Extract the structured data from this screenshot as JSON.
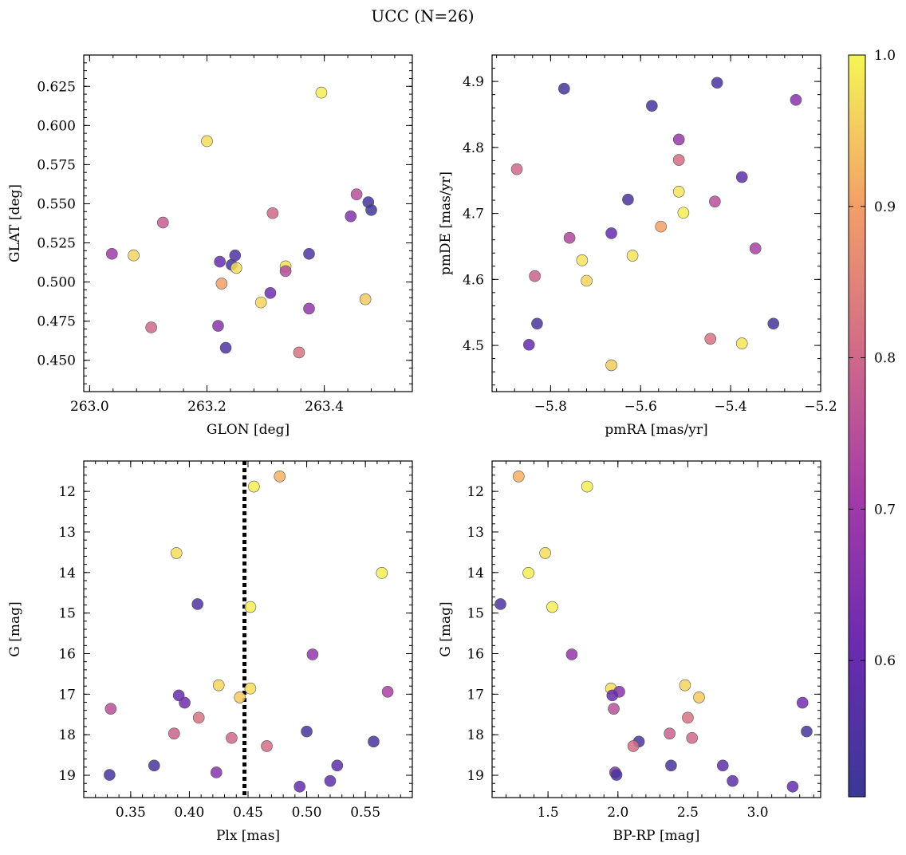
{
  "figure": {
    "title": "UCC (N=26)"
  },
  "colorbar": {
    "range": [
      0.51,
      1.0
    ],
    "ticks": [
      "0.6",
      "0.7",
      "0.8",
      "0.9",
      "1.0"
    ],
    "tick_values": [
      0.6,
      0.7,
      0.8,
      0.9,
      1.0
    ],
    "colormap": "plasma"
  },
  "chart_data": [
    {
      "type": "scatter",
      "xlabel": "GLON [deg]",
      "ylabel": "GLAT [deg]",
      "xlim": [
        262.99,
        263.55
      ],
      "ylim": [
        0.43,
        0.645
      ],
      "y_inverted": false,
      "xticks": [
        263.0,
        263.2,
        263.4
      ],
      "xtick_labels": [
        "263.0",
        "263.2",
        "263.4"
      ],
      "yticks": [
        0.45,
        0.475,
        0.5,
        0.525,
        0.55,
        0.575,
        0.6,
        0.625
      ],
      "ytick_labels": [
        "0.450",
        "0.475",
        "0.500",
        "0.525",
        "0.550",
        "0.575",
        "0.600",
        "0.625"
      ],
      "points": [
        {
          "x": 263.395,
          "y": 0.621,
          "c": 0.99
        },
        {
          "x": 263.2,
          "y": 0.59,
          "c": 0.97
        },
        {
          "x": 263.455,
          "y": 0.556,
          "c": 0.75
        },
        {
          "x": 263.475,
          "y": 0.551,
          "c": 0.53
        },
        {
          "x": 263.48,
          "y": 0.546,
          "c": 0.52
        },
        {
          "x": 263.312,
          "y": 0.544,
          "c": 0.8
        },
        {
          "x": 263.445,
          "y": 0.542,
          "c": 0.65
        },
        {
          "x": 263.125,
          "y": 0.538,
          "c": 0.78
        },
        {
          "x": 263.038,
          "y": 0.518,
          "c": 0.7
        },
        {
          "x": 263.075,
          "y": 0.517,
          "c": 0.96
        },
        {
          "x": 263.374,
          "y": 0.518,
          "c": 0.55
        },
        {
          "x": 263.248,
          "y": 0.517,
          "c": 0.55
        },
        {
          "x": 263.222,
          "y": 0.513,
          "c": 0.6
        },
        {
          "x": 263.242,
          "y": 0.511,
          "c": 0.53
        },
        {
          "x": 263.334,
          "y": 0.51,
          "c": 0.98
        },
        {
          "x": 263.25,
          "y": 0.509,
          "c": 0.97
        },
        {
          "x": 263.334,
          "y": 0.507,
          "c": 0.74
        },
        {
          "x": 263.225,
          "y": 0.499,
          "c": 0.9
        },
        {
          "x": 263.308,
          "y": 0.493,
          "c": 0.62
        },
        {
          "x": 263.47,
          "y": 0.489,
          "c": 0.95
        },
        {
          "x": 263.292,
          "y": 0.487,
          "c": 0.96
        },
        {
          "x": 263.374,
          "y": 0.483,
          "c": 0.68
        },
        {
          "x": 263.219,
          "y": 0.472,
          "c": 0.66
        },
        {
          "x": 263.105,
          "y": 0.471,
          "c": 0.8
        },
        {
          "x": 263.232,
          "y": 0.458,
          "c": 0.55
        },
        {
          "x": 263.357,
          "y": 0.455,
          "c": 0.82
        }
      ]
    },
    {
      "type": "scatter",
      "xlabel": "pmRA [mas/yr]",
      "ylabel": "pmDE [mas/yr]",
      "xlim": [
        -5.93,
        -5.2
      ],
      "ylim": [
        4.43,
        4.94
      ],
      "y_inverted": false,
      "xticks": [
        -5.8,
        -5.6,
        -5.4,
        -5.2
      ],
      "xtick_labels": [
        "−5.8",
        "−5.6",
        "−5.4",
        "−5.2"
      ],
      "yticks": [
        4.5,
        4.6,
        4.7,
        4.8,
        4.9
      ],
      "ytick_labels": [
        "4.5",
        "4.6",
        "4.7",
        "4.8",
        "4.9"
      ],
      "points": [
        {
          "x": -5.43,
          "y": 4.898,
          "c": 0.54
        },
        {
          "x": -5.77,
          "y": 4.889,
          "c": 0.53
        },
        {
          "x": -5.255,
          "y": 4.872,
          "c": 0.66
        },
        {
          "x": -5.575,
          "y": 4.863,
          "c": 0.54
        },
        {
          "x": -5.515,
          "y": 4.812,
          "c": 0.69
        },
        {
          "x": -5.515,
          "y": 4.781,
          "c": 0.81
        },
        {
          "x": -5.875,
          "y": 4.767,
          "c": 0.8
        },
        {
          "x": -5.375,
          "y": 4.755,
          "c": 0.58
        },
        {
          "x": -5.515,
          "y": 4.733,
          "c": 0.98
        },
        {
          "x": -5.628,
          "y": 4.721,
          "c": 0.54
        },
        {
          "x": -5.435,
          "y": 4.718,
          "c": 0.75
        },
        {
          "x": -5.505,
          "y": 4.701,
          "c": 0.99
        },
        {
          "x": -5.555,
          "y": 4.68,
          "c": 0.9
        },
        {
          "x": -5.665,
          "y": 4.67,
          "c": 0.6
        },
        {
          "x": -5.758,
          "y": 4.663,
          "c": 0.73
        },
        {
          "x": -5.345,
          "y": 4.647,
          "c": 0.72
        },
        {
          "x": -5.618,
          "y": 4.636,
          "c": 0.98
        },
        {
          "x": -5.73,
          "y": 4.629,
          "c": 0.98
        },
        {
          "x": -5.835,
          "y": 4.605,
          "c": 0.79
        },
        {
          "x": -5.72,
          "y": 4.598,
          "c": 0.96
        },
        {
          "x": -5.83,
          "y": 4.533,
          "c": 0.54
        },
        {
          "x": -5.305,
          "y": 4.533,
          "c": 0.53
        },
        {
          "x": -5.445,
          "y": 4.51,
          "c": 0.82
        },
        {
          "x": -5.375,
          "y": 4.503,
          "c": 0.98
        },
        {
          "x": -5.848,
          "y": 4.501,
          "c": 0.6
        },
        {
          "x": -5.665,
          "y": 4.47,
          "c": 0.95
        }
      ]
    },
    {
      "type": "scatter",
      "xlabel": "Plx [mas]",
      "ylabel": "G [mag]",
      "xlim": [
        0.31,
        0.59
      ],
      "ylim": [
        11.25,
        19.55
      ],
      "y_inverted": true,
      "vline": 0.447,
      "xticks": [
        0.35,
        0.4,
        0.45,
        0.5,
        0.55
      ],
      "xtick_labels": [
        "0.35",
        "0.40",
        "0.45",
        "0.50",
        "0.55"
      ],
      "yticks": [
        12,
        13,
        14,
        15,
        16,
        17,
        18,
        19
      ],
      "ytick_labels": [
        "12",
        "13",
        "14",
        "15",
        "16",
        "17",
        "18",
        "19"
      ],
      "points": [
        {
          "x": 0.477,
          "y": 11.63,
          "c": 0.92
        },
        {
          "x": 0.455,
          "y": 11.88,
          "c": 0.99
        },
        {
          "x": 0.389,
          "y": 13.52,
          "c": 0.97
        },
        {
          "x": 0.564,
          "y": 14.01,
          "c": 0.99
        },
        {
          "x": 0.407,
          "y": 14.78,
          "c": 0.55
        },
        {
          "x": 0.452,
          "y": 14.85,
          "c": 0.99
        },
        {
          "x": 0.505,
          "y": 16.02,
          "c": 0.68
        },
        {
          "x": 0.425,
          "y": 16.78,
          "c": 0.96
        },
        {
          "x": 0.452,
          "y": 16.86,
          "c": 0.97
        },
        {
          "x": 0.569,
          "y": 16.94,
          "c": 0.72
        },
        {
          "x": 0.391,
          "y": 17.03,
          "c": 0.6
        },
        {
          "x": 0.443,
          "y": 17.08,
          "c": 0.95
        },
        {
          "x": 0.396,
          "y": 17.21,
          "c": 0.62
        },
        {
          "x": 0.333,
          "y": 17.36,
          "c": 0.75
        },
        {
          "x": 0.408,
          "y": 17.58,
          "c": 0.82
        },
        {
          "x": 0.5,
          "y": 17.92,
          "c": 0.53
        },
        {
          "x": 0.387,
          "y": 17.97,
          "c": 0.79
        },
        {
          "x": 0.436,
          "y": 18.08,
          "c": 0.8
        },
        {
          "x": 0.557,
          "y": 18.17,
          "c": 0.54
        },
        {
          "x": 0.466,
          "y": 18.28,
          "c": 0.81
        },
        {
          "x": 0.37,
          "y": 18.76,
          "c": 0.54
        },
        {
          "x": 0.526,
          "y": 18.76,
          "c": 0.58
        },
        {
          "x": 0.423,
          "y": 18.93,
          "c": 0.66
        },
        {
          "x": 0.332,
          "y": 18.99,
          "c": 0.54
        },
        {
          "x": 0.52,
          "y": 19.14,
          "c": 0.58
        },
        {
          "x": 0.494,
          "y": 19.28,
          "c": 0.6
        }
      ]
    },
    {
      "type": "scatter",
      "xlabel": "BP-RP [mag]",
      "ylabel": "G [mag]",
      "xlim": [
        1.1,
        3.45
      ],
      "ylim": [
        11.25,
        19.55
      ],
      "y_inverted": true,
      "xticks": [
        1.5,
        2.0,
        2.5,
        3.0
      ],
      "xtick_labels": [
        "1.5",
        "2.0",
        "2.5",
        "3.0"
      ],
      "yticks": [
        12,
        13,
        14,
        15,
        16,
        17,
        18,
        19
      ],
      "ytick_labels": [
        "12",
        "13",
        "14",
        "15",
        "16",
        "17",
        "18",
        "19"
      ],
      "points": [
        {
          "x": 1.29,
          "y": 11.63,
          "c": 0.92
        },
        {
          "x": 1.78,
          "y": 11.88,
          "c": 0.99
        },
        {
          "x": 1.48,
          "y": 13.52,
          "c": 0.97
        },
        {
          "x": 1.36,
          "y": 14.01,
          "c": 0.99
        },
        {
          "x": 1.16,
          "y": 14.78,
          "c": 0.55
        },
        {
          "x": 1.53,
          "y": 14.85,
          "c": 0.99
        },
        {
          "x": 1.67,
          "y": 16.02,
          "c": 0.68
        },
        {
          "x": 2.48,
          "y": 16.78,
          "c": 0.96
        },
        {
          "x": 1.95,
          "y": 16.86,
          "c": 0.97
        },
        {
          "x": 2.01,
          "y": 16.94,
          "c": 0.66
        },
        {
          "x": 1.96,
          "y": 17.03,
          "c": 0.6
        },
        {
          "x": 2.58,
          "y": 17.08,
          "c": 0.95
        },
        {
          "x": 3.32,
          "y": 17.21,
          "c": 0.62
        },
        {
          "x": 1.97,
          "y": 17.36,
          "c": 0.75
        },
        {
          "x": 2.5,
          "y": 17.58,
          "c": 0.82
        },
        {
          "x": 3.35,
          "y": 17.92,
          "c": 0.53
        },
        {
          "x": 2.37,
          "y": 17.97,
          "c": 0.79
        },
        {
          "x": 2.53,
          "y": 18.08,
          "c": 0.8
        },
        {
          "x": 2.15,
          "y": 18.17,
          "c": 0.54
        },
        {
          "x": 2.11,
          "y": 18.28,
          "c": 0.81
        },
        {
          "x": 2.38,
          "y": 18.76,
          "c": 0.54
        },
        {
          "x": 2.75,
          "y": 18.76,
          "c": 0.58
        },
        {
          "x": 1.98,
          "y": 18.93,
          "c": 0.66
        },
        {
          "x": 1.99,
          "y": 18.99,
          "c": 0.54
        },
        {
          "x": 2.82,
          "y": 19.14,
          "c": 0.58
        },
        {
          "x": 3.25,
          "y": 19.28,
          "c": 0.6
        }
      ]
    }
  ]
}
